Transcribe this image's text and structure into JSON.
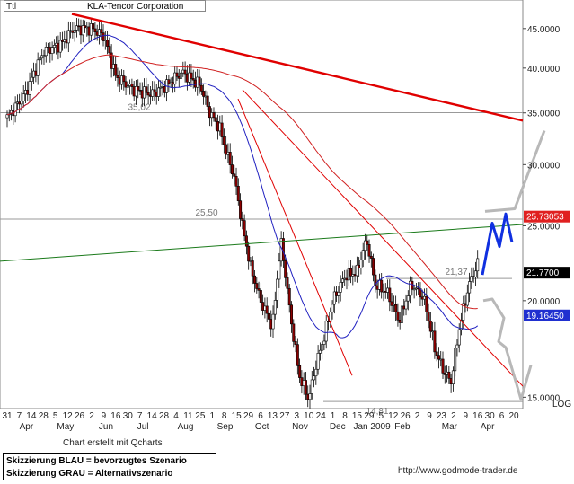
{
  "chart_data": {
    "type": "candlestick",
    "symbol": "Ttl",
    "title": "KLA-Tencor Corporation",
    "scale_label": "LOG",
    "y_scale": "log",
    "ylim": [
      14.5,
      49
    ],
    "y_ticks": [
      15,
      20,
      25,
      30,
      35,
      40,
      45
    ],
    "y_tick_labels": [
      "15.0000",
      "20.0000",
      "25.0000",
      "30.0000",
      "35.0000",
      "40.0000",
      "45.0000"
    ],
    "x_date_labels": [
      "31",
      "7",
      "14",
      "28",
      "5",
      "12",
      "26",
      "2",
      "9",
      "16",
      "30",
      "7",
      "14",
      "28",
      "4",
      "11",
      "25",
      "1",
      "8",
      "15",
      "29",
      "6",
      "13",
      "27",
      "3",
      "10",
      "24",
      "1",
      "8",
      "15",
      "29",
      "5",
      "12",
      "26",
      "2",
      "9",
      "23",
      "2",
      "9",
      "16",
      "30",
      "6",
      "20"
    ],
    "x_month_labels": [
      "Apr",
      "May",
      "Jun",
      "Jul",
      "Aug",
      "Sep",
      "Oct",
      "Nov",
      "Dec",
      "Jan 2009",
      "Feb",
      "Mar",
      "Apr"
    ],
    "levels": [
      {
        "label": "35,02",
        "value": 35.02
      },
      {
        "label": "25,50",
        "value": 25.5
      },
      {
        "label": "21,37",
        "value": 21.37
      },
      {
        "label": "14,81",
        "value": 14.81
      }
    ],
    "price_badges": [
      {
        "label": "25.73053",
        "value": 25.73053,
        "color": "#e02020"
      },
      {
        "label": "21.7700",
        "value": 21.77,
        "color": "#000000"
      },
      {
        "label": "19.16450",
        "value": 19.1645,
        "color": "#2030d0"
      }
    ],
    "colors": {
      "up": "#ffffff",
      "down": "#8b0000",
      "ma_short": "#2020c0",
      "ma_long": "#d02020",
      "trend": "#e00000",
      "support": "#1a7a1a",
      "scenario_blue": "#1030e0",
      "scenario_gray": "#b8b8b8"
    }
  },
  "legend": {
    "line1": "Skizzierung BLAU = bevorzugtes Szenario",
    "line2": "Skizzierung GRAU = Alternativszenario"
  },
  "credit": "Chart erstellt mit Qcharts",
  "source": "http://www.godmode-trader.de"
}
